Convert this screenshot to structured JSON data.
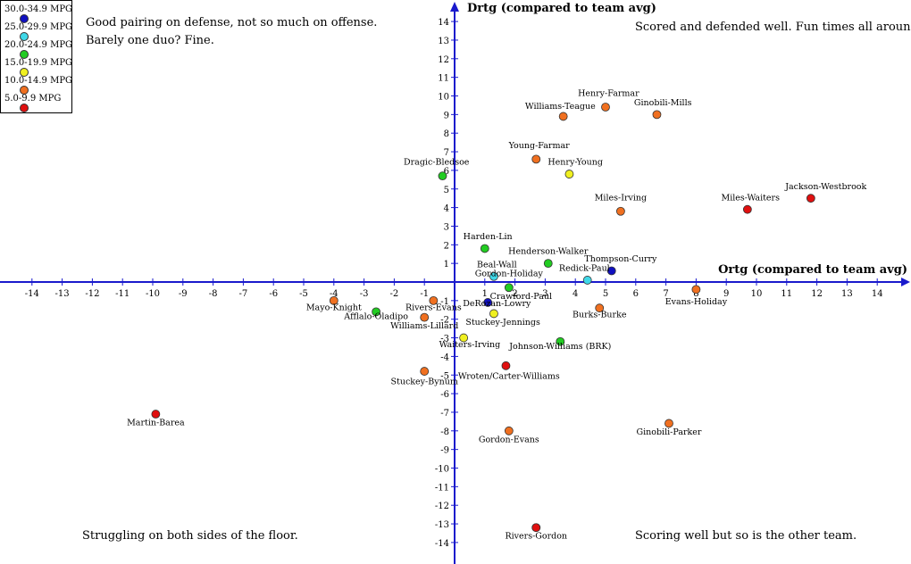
{
  "chart_data": {
    "type": "scatter",
    "xlabel": "Ortg (compared to team avg)",
    "ylabel": "Drtg (compared to team avg)",
    "xlim": [
      -14,
      14
    ],
    "ylim": [
      -14,
      14
    ],
    "x_ticks": [
      -14,
      -13,
      -12,
      -11,
      -10,
      -9,
      -8,
      -7,
      -6,
      -5,
      -4,
      -3,
      -2,
      -1,
      1,
      2,
      3,
      4,
      5,
      6,
      7,
      8,
      9,
      10,
      11,
      12,
      13,
      14
    ],
    "y_ticks": [
      14,
      13,
      12,
      11,
      10,
      9,
      8,
      7,
      6,
      5,
      4,
      3,
      2,
      1,
      -1,
      -2,
      -3,
      -4,
      -5,
      -6,
      -7,
      -8,
      -9,
      -10,
      -11,
      -12,
      -13,
      -14
    ],
    "grid": false,
    "legend_position": "top-left",
    "legend": [
      {
        "label": "30.0-34.9 MPG",
        "color": "#1010c0"
      },
      {
        "label": "25.0-29.9 MPG",
        "color": "#40d8e8"
      },
      {
        "label": "20.0-24.9 MPG",
        "color": "#22cc22"
      },
      {
        "label": "15.0-19.9 MPG",
        "color": "#f0f020"
      },
      {
        "label": "10.0-14.9 MPG",
        "color": "#f07020"
      },
      {
        "label": "5.0-9.9 MPG",
        "color": "#e01010"
      }
    ],
    "points": [
      {
        "label": "Henry-Farmar",
        "x": 5.0,
        "y": 9.4,
        "color": "#f07020"
      },
      {
        "label": "Williams-Teague",
        "x": 3.6,
        "y": 8.9,
        "color": "#f07020"
      },
      {
        "label": "Ginobili-Mills",
        "x": 6.7,
        "y": 9.0,
        "color": "#f07020"
      },
      {
        "label": "Young-Farmar",
        "x": 2.7,
        "y": 6.6,
        "color": "#f07020"
      },
      {
        "label": "Henry-Young",
        "x": 3.8,
        "y": 5.8,
        "color": "#f0f020"
      },
      {
        "label": "Dragic-Bledsoe",
        "x": -0.4,
        "y": 5.7,
        "color": "#22cc22"
      },
      {
        "label": "Jackson-Westbrook",
        "x": 11.8,
        "y": 4.5,
        "color": "#e01010"
      },
      {
        "label": "Miles-Waiters",
        "x": 9.7,
        "y": 3.9,
        "color": "#e01010"
      },
      {
        "label": "Miles-Irving",
        "x": 5.5,
        "y": 3.8,
        "color": "#f07020"
      },
      {
        "label": "Harden-Lin",
        "x": 1.0,
        "y": 1.8,
        "color": "#22cc22"
      },
      {
        "label": "Henderson-Walker",
        "x": 3.1,
        "y": 1.0,
        "color": "#22cc22"
      },
      {
        "label": "Thompson-Curry",
        "x": 5.2,
        "y": 0.6,
        "color": "#1010c0"
      },
      {
        "label": "Beal-Wall",
        "x": 1.3,
        "y": 0.3,
        "color": "#40d8e8"
      },
      {
        "label": "Redick-Paul",
        "x": 4.4,
        "y": 0.1,
        "color": "#40d8e8"
      },
      {
        "label": "Gordon-Holiday",
        "x": 1.8,
        "y": -0.3,
        "color": "#22cc22"
      },
      {
        "label": "Evans-Holiday",
        "x": 8.0,
        "y": -0.4,
        "color": "#f07020"
      },
      {
        "label": "Rivers-Evans",
        "x": -0.7,
        "y": -1.0,
        "color": "#f07020"
      },
      {
        "label": "Mayo-Knight",
        "x": -4.0,
        "y": -1.0,
        "color": "#f07020"
      },
      {
        "label": "Crawford-Paul",
        "x": 1.1,
        "y": -1.1,
        "color": "#1010c0"
      },
      {
        "label": "Afflalo-Oladipo",
        "x": -2.6,
        "y": -1.6,
        "color": "#22cc22"
      },
      {
        "label": "DeRozan-Lowry",
        "x": 1.3,
        "y": -1.7,
        "color": "#f0f020"
      },
      {
        "label": "Williams-Lillard",
        "x": -1.0,
        "y": -1.9,
        "color": "#f07020"
      },
      {
        "label": "Burks-Burke",
        "x": 4.8,
        "y": -1.4,
        "color": "#f07020"
      },
      {
        "label": "Stuckey-Jennings",
        "x": 0.3,
        "y": -3.0,
        "color": "#f0f020"
      },
      {
        "label": "Johnson-Williams (BRK)",
        "x": 3.5,
        "y": -3.2,
        "color": "#22cc22"
      },
      {
        "label": "Waiters-Irving",
        "x": 1.7,
        "y": -4.5,
        "color": "#e01010"
      },
      {
        "label": "Wroten/Carter-Williams",
        "x": -1.0,
        "y": -4.8,
        "color": "#f07020"
      },
      {
        "label": "Stuckey-Bynum",
        "x": -9.9,
        "y": -7.1,
        "color": "#e01010"
      },
      {
        "label": "Martin-Barea",
        "x": 1.8,
        "y": -8.0,
        "color": "#f07020"
      },
      {
        "label": "Gordon-Evans",
        "x": 7.1,
        "y": -7.6,
        "color": "#f07020"
      },
      {
        "label": "Ginobili-Parker",
        "x": 2.7,
        "y": -13.2,
        "color": "#e01010"
      },
      {
        "label": "Rivers-Gordon",
        "x": 0,
        "y": 0,
        "color": "#e01010",
        "hidden_marker": true
      }
    ],
    "annotations": [
      {
        "label": "Henry-Farmar",
        "x": 5.1,
        "y": 10.0
      },
      {
        "label": "Williams-Teague",
        "x": 3.5,
        "y": 9.3
      },
      {
        "label": "Ginobili-Mills",
        "x": 6.9,
        "y": 9.5
      },
      {
        "label": "Young-Farmar",
        "x": 2.8,
        "y": 7.2
      },
      {
        "label": "Henry-Young",
        "x": 4.0,
        "y": 6.3
      },
      {
        "label": "Dragic-Bledsoe",
        "x": -0.6,
        "y": 6.3
      },
      {
        "label": "Jackson-Westbrook",
        "x": 12.3,
        "y": 5.0
      },
      {
        "label": "Miles-Waiters",
        "x": 9.8,
        "y": 4.4
      },
      {
        "label": "Miles-Irving",
        "x": 5.5,
        "y": 4.4
      },
      {
        "label": "Harden-Lin",
        "x": 1.1,
        "y": 2.3
      },
      {
        "label": "Henderson-Walker",
        "x": 3.1,
        "y": 1.5
      },
      {
        "label": "Thompson-Curry",
        "x": 5.5,
        "y": 1.1
      },
      {
        "label": "Beal-Wall",
        "x": 1.4,
        "y": 0.8
      },
      {
        "label": "Redick-Paul",
        "x": 4.3,
        "y": 0.6
      },
      {
        "label": "Gordon-Holiday",
        "x": 1.8,
        "y": 0.3
      },
      {
        "label": "Evans-Holiday",
        "x": 8.0,
        "y": -1.2
      },
      {
        "label": "Rivers-Evans",
        "x": -0.7,
        "y": -1.5
      },
      {
        "label": "Mayo-Knight",
        "x": -4.0,
        "y": -1.5
      },
      {
        "label": "Crawford-Paul",
        "x": 2.2,
        "y": -0.9
      },
      {
        "label": "Afflalo-Oladipo",
        "x": -2.6,
        "y": -2.0
      },
      {
        "label": "DeRozan-Lowry",
        "x": 1.4,
        "y": -1.3
      },
      {
        "label": "Williams-Lillard",
        "x": -1.0,
        "y": -2.5
      },
      {
        "label": "Burks-Burke",
        "x": 4.8,
        "y": -1.9
      },
      {
        "label": "Stuckey-Jennings",
        "x": 1.6,
        "y": -2.3
      },
      {
        "label": "Johnson-Williams (BRK)",
        "x": 3.5,
        "y": -3.6
      },
      {
        "label": "Waiters-Irving",
        "x": 0.5,
        "y": -3.5
      },
      {
        "label": "Wroten/Carter-Williams",
        "x": 1.8,
        "y": -5.2
      },
      {
        "label": "Stuckey-Bynum",
        "x": -1.0,
        "y": -5.5
      },
      {
        "label": "Martin-Barea",
        "x": -9.9,
        "y": -7.7
      },
      {
        "label": "Gordon-Evans",
        "x": 1.8,
        "y": -8.6
      },
      {
        "label": "Ginobili-Parker",
        "x": 7.1,
        "y": -8.2
      },
      {
        "label": "Rivers-Gordon",
        "x": 2.7,
        "y": -13.8
      }
    ]
  },
  "quadrant_notes": {
    "top_left": [
      "Good pairing on defense, not so much on offense.",
      "Barely one duo? Fine."
    ],
    "top_right": "Scored and defended well. Fun times all around.",
    "bottom_left": "Struggling on both sides of the floor.",
    "bottom_right": "Scoring well but so is the other team."
  },
  "colors": {
    "axis": "#1a1acc",
    "marker_stroke": "#333333"
  }
}
